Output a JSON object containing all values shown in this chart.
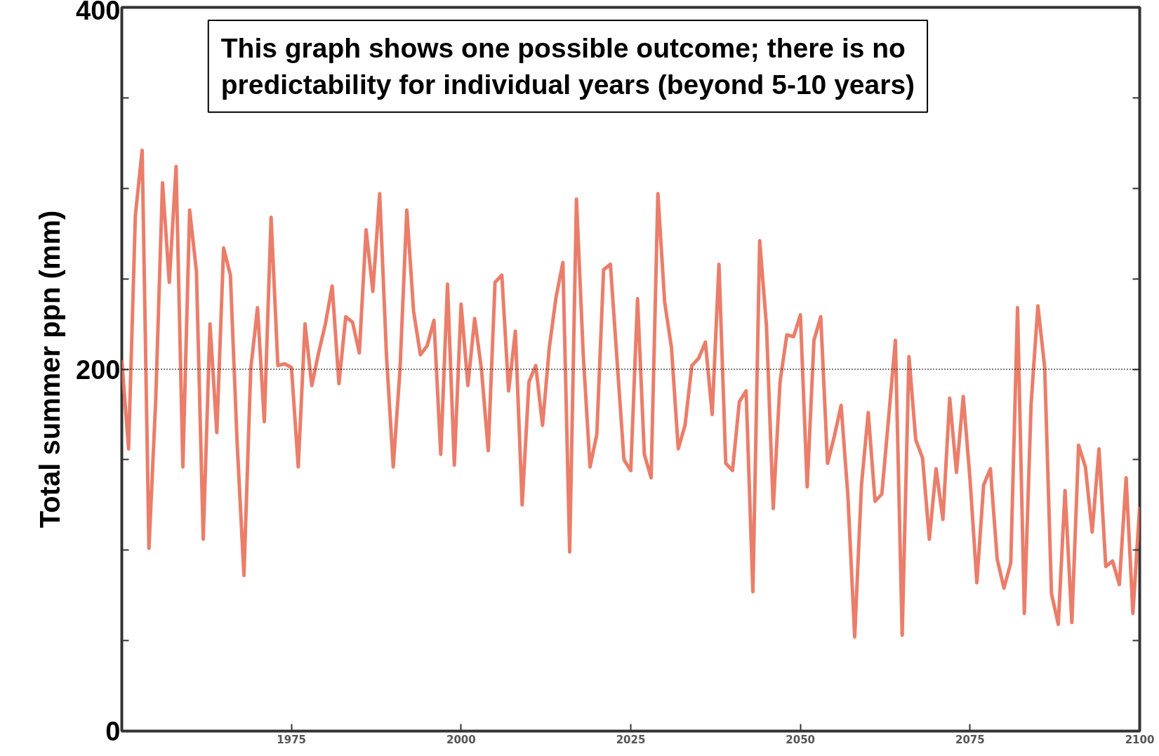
{
  "chart_data": {
    "type": "line",
    "ylabel": "Total summer ppn (mm)",
    "x": [
      1950,
      1951,
      1952,
      1953,
      1954,
      1955,
      1956,
      1957,
      1958,
      1959,
      1960,
      1961,
      1962,
      1963,
      1964,
      1965,
      1966,
      1967,
      1968,
      1969,
      1970,
      1971,
      1972,
      1973,
      1974,
      1975,
      1976,
      1977,
      1978,
      1979,
      1980,
      1981,
      1982,
      1983,
      1984,
      1985,
      1986,
      1987,
      1988,
      1989,
      1990,
      1991,
      1992,
      1993,
      1994,
      1995,
      1996,
      1997,
      1998,
      1999,
      2000,
      2001,
      2002,
      2003,
      2004,
      2005,
      2006,
      2007,
      2008,
      2009,
      2010,
      2011,
      2012,
      2013,
      2014,
      2015,
      2016,
      2017,
      2018,
      2019,
      2020,
      2021,
      2022,
      2023,
      2024,
      2025,
      2026,
      2027,
      2028,
      2029,
      2030,
      2031,
      2032,
      2033,
      2034,
      2035,
      2036,
      2037,
      2038,
      2039,
      2040,
      2041,
      2042,
      2043,
      2044,
      2045,
      2046,
      2047,
      2048,
      2049,
      2050,
      2051,
      2052,
      2053,
      2054,
      2055,
      2056,
      2057,
      2058,
      2059,
      2060,
      2061,
      2062,
      2063,
      2064,
      2065,
      2066,
      2067,
      2068,
      2069,
      2070,
      2071,
      2072,
      2073,
      2074,
      2075,
      2076,
      2077,
      2078,
      2079,
      2080,
      2081,
      2082,
      2083,
      2084,
      2085,
      2086,
      2087,
      2088,
      2089,
      2090,
      2091,
      2092,
      2093,
      2094,
      2095,
      2096,
      2097,
      2098,
      2099,
      2100
    ],
    "series": [
      {
        "color": "#e8705a",
        "values": [
          205,
          156,
          285,
          321,
          101,
          183,
          303,
          248,
          312,
          146,
          288,
          254,
          106,
          225,
          165,
          267,
          252,
          159,
          86,
          200,
          234,
          171,
          284,
          202,
          203,
          201,
          146,
          225,
          191,
          209,
          225,
          246,
          192,
          229,
          226,
          209,
          277,
          243,
          297,
          208,
          146,
          200,
          288,
          232,
          208,
          213,
          227,
          153,
          247,
          147,
          236,
          191,
          228,
          200,
          155,
          248,
          252,
          188,
          221,
          125,
          193,
          202,
          169,
          212,
          240,
          259,
          99,
          294,
          208,
          146,
          164,
          255,
          258,
          204,
          150,
          144,
          239,
          153,
          140,
          297,
          237,
          212,
          156,
          169,
          202,
          206,
          215,
          175,
          258,
          148,
          144,
          182,
          188,
          77,
          271,
          224,
          123,
          193,
          219,
          218,
          230,
          135,
          216,
          229,
          148,
          163,
          180,
          130,
          52,
          136,
          176,
          127,
          131,
          173,
          216,
          53,
          207,
          161,
          151,
          106,
          145,
          117,
          184,
          143,
          185,
          139,
          82,
          136,
          145,
          95,
          79,
          93,
          234,
          65,
          181,
          235,
          201,
          76,
          59,
          133,
          60,
          158,
          146,
          110,
          156,
          91,
          94,
          81,
          140,
          65,
          124
        ]
      }
    ],
    "xlim": [
      1950,
      2100
    ],
    "ylim": [
      0,
      400
    ],
    "xticks": [
      1975,
      2000,
      2025,
      2050,
      2075,
      2100
    ],
    "yticks": [
      0,
      {
        "value": 50,
        "label": null
      },
      {
        "value": 100,
        "label": null
      },
      {
        "value": 150,
        "label": null
      },
      200,
      {
        "value": 250,
        "label": null
      },
      {
        "value": 300,
        "label": null
      },
      {
        "value": 350,
        "label": null
      },
      400
    ],
    "ref_lines": [
      {
        "axis": "y",
        "value": 200,
        "color": "#000000",
        "line_style": "dotted"
      }
    ],
    "annotations": [
      "This graph shows one possible outcome; there is no predictability for individual years (beyond 5-10 years)"
    ],
    "grid": false
  }
}
